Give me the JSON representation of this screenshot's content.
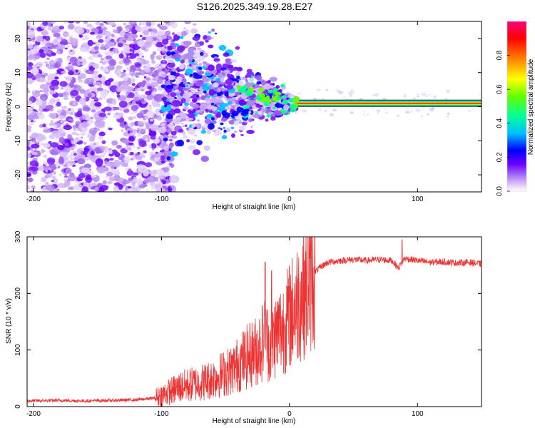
{
  "title": "S126.2025.349.19.28.E27",
  "chart_data": [
    {
      "type": "heatmap",
      "name": "spectrogram",
      "xlabel": "Height of straight line (km)",
      "ylabel": "Frequency (Hz)",
      "xlim": [
        -205,
        150
      ],
      "ylim": [
        -25,
        25
      ],
      "xticks": [
        -200,
        -100,
        0,
        100
      ],
      "yticks": [
        -20,
        -10,
        0,
        10,
        20
      ],
      "colorbar": {
        "label": "Normalized spectral amplitude",
        "range": [
          0,
          1
        ],
        "ticks": [
          0.0,
          0.2,
          0.4,
          0.6,
          0.8
        ],
        "tick_labels": [
          "0.0",
          "0.2",
          "0.4",
          "0.6",
          "0.8"
        ],
        "colors": [
          "#ffffff",
          "#b07cf0",
          "#6a00ff",
          "#0000ff",
          "#00bfff",
          "#00ff80",
          "#80ff00",
          "#ffff00",
          "#ff8000",
          "#ff0000",
          "#ff0080"
        ]
      },
      "features": {
        "carrier_line_hz": 1,
        "carrier_start_km": 5,
        "noise_region_km": [
          -205,
          -100
        ],
        "transition_region_km": [
          -100,
          5
        ]
      }
    },
    {
      "type": "line",
      "name": "snr",
      "xlabel": "Height of straight line (km)",
      "ylabel": "SNR (10 * v/v)",
      "xlim": [
        -205,
        150
      ],
      "ylim": [
        0,
        300
      ],
      "xticks": [
        -200,
        -100,
        0,
        100
      ],
      "yticks": [
        0,
        100,
        200,
        300
      ],
      "color": "#ee3333",
      "series": [
        {
          "name": "SNR",
          "x": [
            -205,
            -180,
            -160,
            -140,
            -120,
            -105,
            -95,
            -85,
            -75,
            -65,
            -55,
            -45,
            -35,
            -25,
            -20,
            -15,
            -10,
            -5,
            0,
            5,
            10,
            15,
            20,
            25,
            30,
            40,
            50,
            60,
            70,
            80,
            85,
            90,
            100,
            110,
            120,
            130,
            140,
            150
          ],
          "y": [
            10,
            11,
            10,
            11,
            12,
            15,
            25,
            35,
            40,
            45,
            55,
            65,
            85,
            100,
            120,
            110,
            130,
            140,
            160,
            180,
            200,
            220,
            238,
            248,
            255,
            258,
            260,
            258,
            260,
            258,
            245,
            262,
            258,
            255,
            256,
            254,
            255,
            252
          ]
        }
      ],
      "annotations": [
        {
          "x": -19,
          "y": 255,
          "note": "spike"
        },
        {
          "x": -14,
          "y": 240,
          "note": "spike"
        },
        {
          "x": 88,
          "y": 295,
          "note": "spike"
        }
      ]
    }
  ]
}
